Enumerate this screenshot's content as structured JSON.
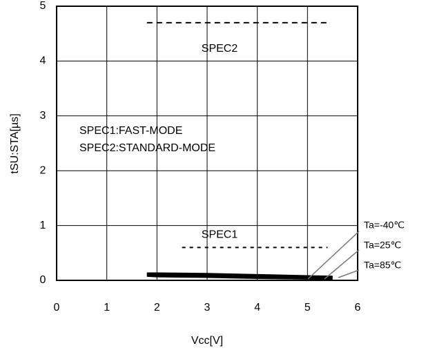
{
  "chart_data": {
    "type": "line",
    "xlabel": "Vcc[V]",
    "ylabel": "tSU:STA[µs]",
    "xlim": [
      0,
      6
    ],
    "ylim": [
      0,
      5
    ],
    "xticks": [
      0,
      1,
      2,
      3,
      4,
      5,
      6
    ],
    "yticks": [
      0,
      1,
      2,
      3,
      4,
      5
    ],
    "grid": true,
    "x": [
      1.8,
      2,
      3,
      4,
      5,
      5.5
    ],
    "series": [
      {
        "name": "Ta=-40℃",
        "color": "#000000",
        "values": [
          0.12,
          0.12,
          0.11,
          0.09,
          0.07,
          0.06
        ]
      },
      {
        "name": "Ta=25℃",
        "color": "#000000",
        "values": [
          0.11,
          0.1,
          0.09,
          0.07,
          0.05,
          0.05
        ]
      },
      {
        "name": "Ta=85℃",
        "color": "#000000",
        "values": [
          0.09,
          0.08,
          0.07,
          0.05,
          0.04,
          0.03
        ]
      }
    ],
    "spec_lines": [
      {
        "label": "SPEC2",
        "y": 4.7,
        "x": [
          1.8,
          5.4
        ]
      },
      {
        "label": "SPEC1",
        "y": 0.6,
        "x": [
          2.5,
          5.4
        ]
      }
    ],
    "annotations": [
      "SPEC1:FAST-MODE",
      "SPEC2:STANDARD-MODE"
    ]
  }
}
